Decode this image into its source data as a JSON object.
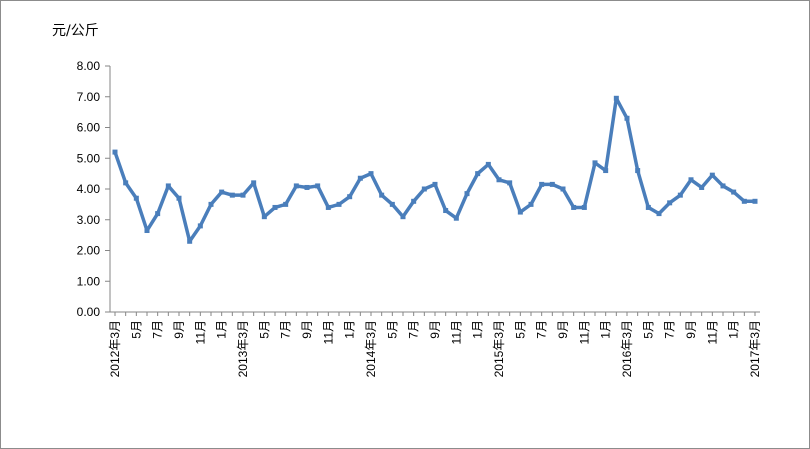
{
  "chart_data": {
    "type": "line",
    "ylabel": "元/公斤",
    "ylim": [
      0,
      8
    ],
    "y_ticks": [
      "0.00",
      "1.00",
      "2.00",
      "3.00",
      "4.00",
      "5.00",
      "6.00",
      "7.00",
      "8.00"
    ],
    "grid": false,
    "legend": "none",
    "x": [
      "2012年3月",
      "4月",
      "5月",
      "6月",
      "7月",
      "8月",
      "9月",
      "10月",
      "11月",
      "12月",
      "1月",
      "2月",
      "2013年3月",
      "4月",
      "5月",
      "6月",
      "7月",
      "8月",
      "9月",
      "10月",
      "11月",
      "12月",
      "1月",
      "2月",
      "2014年3月",
      "4月",
      "5月",
      "6月",
      "7月",
      "8月",
      "9月",
      "10月",
      "11月",
      "12月",
      "1月",
      "2月",
      "2015年3月",
      "4月",
      "5月",
      "6月",
      "7月",
      "8月",
      "9月",
      "10月",
      "11月",
      "12月",
      "1月",
      "2月",
      "2016年3月",
      "4月",
      "5月",
      "6月",
      "7月",
      "8月",
      "9月",
      "10月",
      "11月",
      "12月",
      "1月",
      "2月",
      "2017年3月"
    ],
    "x_tick_labels": [
      "2012年3月",
      "5月",
      "7月",
      "9月",
      "11月",
      "1月",
      "2013年3月",
      "5月",
      "7月",
      "9月",
      "11月",
      "1月",
      "2014年3月",
      "5月",
      "7月",
      "9月",
      "11月",
      "1月",
      "2015年3月",
      "5月",
      "7月",
      "9月",
      "11月",
      "1月",
      "2016年3月",
      "5月",
      "7月",
      "9月",
      "11月",
      "1月",
      "2017年3月"
    ],
    "series": [
      {
        "color": "#4a7ebb",
        "values": [
          5.2,
          4.2,
          3.7,
          2.65,
          3.2,
          4.1,
          3.7,
          2.3,
          2.8,
          3.5,
          3.9,
          3.8,
          3.8,
          4.2,
          3.1,
          3.4,
          3.5,
          4.1,
          4.05,
          4.1,
          3.4,
          3.5,
          3.75,
          4.35,
          4.5,
          3.8,
          3.5,
          3.1,
          3.6,
          4.0,
          4.15,
          3.3,
          3.05,
          3.85,
          4.5,
          4.8,
          4.3,
          4.2,
          3.25,
          3.5,
          4.15,
          4.15,
          4.0,
          3.4,
          3.4,
          4.85,
          4.6,
          6.95,
          6.3,
          4.6,
          3.4,
          3.2,
          3.55,
          3.8,
          4.3,
          4.05,
          4.45,
          4.1,
          3.9,
          3.6,
          3.6
        ]
      }
    ]
  }
}
